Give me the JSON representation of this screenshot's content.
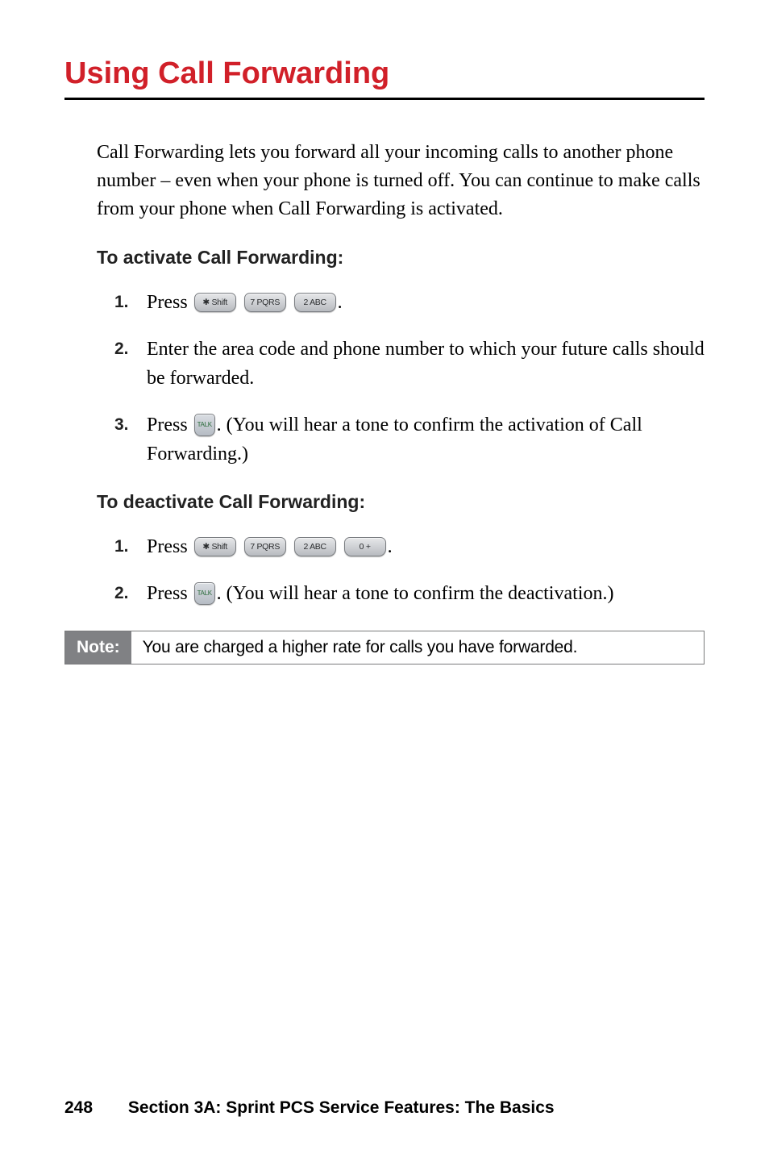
{
  "title": "Using Call Forwarding",
  "intro": "Call Forwarding lets you forward all your incoming calls to another phone number – even when your phone is turned off. You can continue to make calls from your phone when Call Forwarding is activated.",
  "activate": {
    "heading": "To activate Call Forwarding:",
    "steps": {
      "s1": {
        "num": "1.",
        "pre": "Press ",
        "post": "."
      },
      "s2": {
        "num": "2.",
        "text": "Enter the area code and phone number to which your future calls should be forwarded."
      },
      "s3": {
        "num": "3.",
        "pre": "Press ",
        "post": ". (You will hear a tone to confirm the activation of Call Forwarding.)"
      }
    }
  },
  "deactivate": {
    "heading": "To deactivate Call Forwarding:",
    "steps": {
      "s1": {
        "num": "1.",
        "pre": "Press ",
        "post": "."
      },
      "s2": {
        "num": "2.",
        "pre": "Press ",
        "post": ". (You will hear a tone to confirm the deactivation.)"
      }
    }
  },
  "note": {
    "label": "Note:",
    "text": "You are charged a higher rate for calls you have forwarded."
  },
  "footer": {
    "page": "248",
    "section": "Section 3A: Sprint PCS Service Features: The Basics"
  },
  "keys": {
    "star": "✱ Shift",
    "k7": "7 PQRS",
    "k2": "2 ABC",
    "k0": "0 +",
    "talk": "TALK"
  },
  "style": {
    "title_color": "#d12029",
    "underline_color": "#000000",
    "note_label_bg": "#808184",
    "key_bg_top": "#e6e7e9",
    "key_bg_bottom": "#b8bbc0",
    "body_font": "Georgia",
    "ui_font": "Arial"
  }
}
